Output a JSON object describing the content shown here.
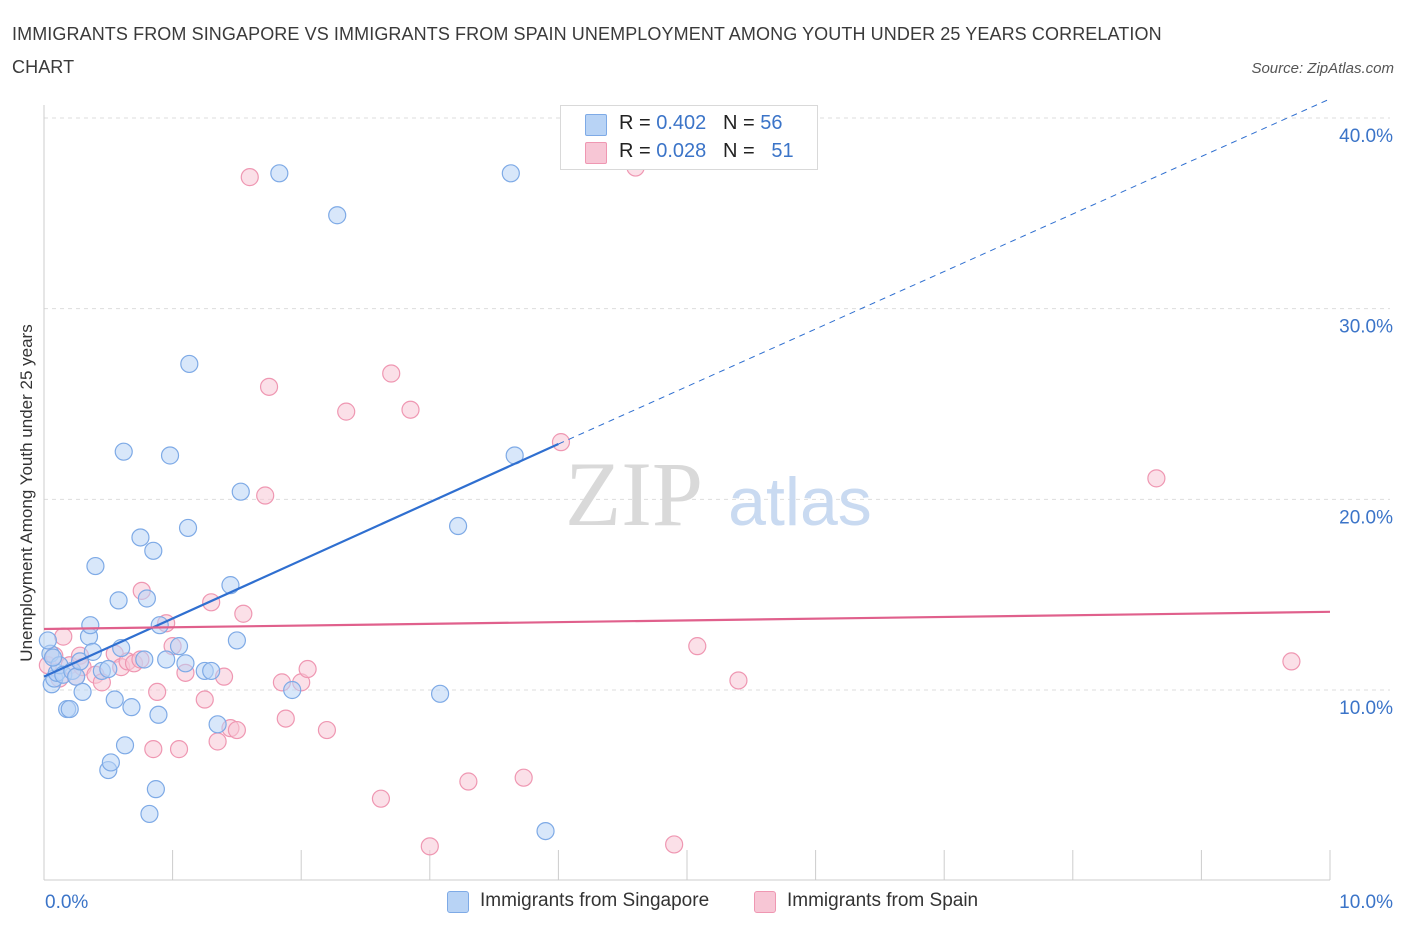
{
  "title": "IMMIGRANTS FROM SINGAPORE VS IMMIGRANTS FROM SPAIN UNEMPLOYMENT AMONG YOUTH UNDER 25 YEARS CORRELATION CHART",
  "source": "Source: ZipAtlas.com",
  "watermark": {
    "zip": "ZIP",
    "atlas": "atlas"
  },
  "legend": {
    "singapore": {
      "r_label": "R = ",
      "r_value": "0.402",
      "n_label": "N = ",
      "n_value": "56"
    },
    "spain": {
      "r_label": "R = ",
      "r_value": "0.028",
      "n_label": "N = ",
      "n_value": "51"
    }
  },
  "colors": {
    "singapore_fill": "#b8d3f5",
    "singapore_stroke": "#7eaae6",
    "singapore_line": "#2f6fd0",
    "spain_fill": "#f7c6d5",
    "spain_stroke": "#ef97b2",
    "spain_line": "#e0608c",
    "axis_text": "#3b74c8",
    "grid": "#dddddd"
  },
  "chart_data": {
    "type": "scatter",
    "title": "IMMIGRANTS FROM SINGAPORE VS IMMIGRANTS FROM SPAIN UNEMPLOYMENT AMONG YOUTH UNDER 25 YEARS CORRELATION CHART",
    "xlabel": "",
    "ylabel": "Unemployment Among Youth under 25 years",
    "xlim": [
      0,
      10
    ],
    "ylim": [
      0,
      40
    ],
    "x_tick_labels": [
      "0.0%",
      "10.0%"
    ],
    "y_ticks": [
      10,
      20,
      30,
      40
    ],
    "y_tick_labels": [
      "10.0%",
      "20.0%",
      "30.0%",
      "40.0%"
    ],
    "grid": true,
    "legend_position": "top-center",
    "series": [
      {
        "name": "Immigrants from Singapore",
        "r": 0.402,
        "n": 56,
        "trend": {
          "x_start": 0,
          "y_start": 10.7,
          "x_solid_end": 4.0,
          "y_solid_end": 22.9,
          "x_dash_end": 10,
          "y_dash_end": 41.0
        },
        "points": [
          [
            0.05,
            11.9
          ],
          [
            0.06,
            10.3
          ],
          [
            0.08,
            10.6
          ],
          [
            0.1,
            10.9
          ],
          [
            0.12,
            11.3
          ],
          [
            0.15,
            10.8
          ],
          [
            0.18,
            9.0
          ],
          [
            0.2,
            9.0
          ],
          [
            0.22,
            11.0
          ],
          [
            0.25,
            10.7
          ],
          [
            0.28,
            11.5
          ],
          [
            0.3,
            9.9
          ],
          [
            0.35,
            12.8
          ],
          [
            0.36,
            13.4
          ],
          [
            0.38,
            12.0
          ],
          [
            0.4,
            16.5
          ],
          [
            0.45,
            11.0
          ],
          [
            0.5,
            5.8
          ],
          [
            0.5,
            11.1
          ],
          [
            0.52,
            6.2
          ],
          [
            0.55,
            9.5
          ],
          [
            0.58,
            14.7
          ],
          [
            0.6,
            12.2
          ],
          [
            0.62,
            22.5
          ],
          [
            0.63,
            7.1
          ],
          [
            0.68,
            9.1
          ],
          [
            0.75,
            18.0
          ],
          [
            0.78,
            11.6
          ],
          [
            0.8,
            14.8
          ],
          [
            0.82,
            3.5
          ],
          [
            0.85,
            17.3
          ],
          [
            0.87,
            4.8
          ],
          [
            0.89,
            8.7
          ],
          [
            0.9,
            13.4
          ],
          [
            0.95,
            11.6
          ],
          [
            0.98,
            22.3
          ],
          [
            1.05,
            12.3
          ],
          [
            1.1,
            11.4
          ],
          [
            1.12,
            18.5
          ],
          [
            1.13,
            27.1
          ],
          [
            1.25,
            11.0
          ],
          [
            1.3,
            11.0
          ],
          [
            1.35,
            8.2
          ],
          [
            1.45,
            15.5
          ],
          [
            1.5,
            12.6
          ],
          [
            1.53,
            20.4
          ],
          [
            1.83,
            37.1
          ],
          [
            1.93,
            10.0
          ],
          [
            2.28,
            34.9
          ],
          [
            3.08,
            9.8
          ],
          [
            3.22,
            18.6
          ],
          [
            3.63,
            37.1
          ],
          [
            3.66,
            22.3
          ],
          [
            3.9,
            2.6
          ],
          [
            0.03,
            12.6
          ],
          [
            0.07,
            11.7
          ]
        ]
      },
      {
        "name": "Immigrants from Spain",
        "r": 0.028,
        "n": 51,
        "trend": {
          "x_start": 0,
          "y_start": 13.2,
          "x_end": 10,
          "y_end": 14.1
        },
        "points": [
          [
            0.03,
            11.3
          ],
          [
            0.08,
            11.8
          ],
          [
            0.12,
            10.6
          ],
          [
            0.15,
            12.8
          ],
          [
            0.2,
            11.3
          ],
          [
            0.25,
            10.7
          ],
          [
            0.28,
            11.8
          ],
          [
            0.3,
            11.2
          ],
          [
            0.4,
            10.8
          ],
          [
            0.45,
            10.4
          ],
          [
            0.55,
            11.9
          ],
          [
            0.6,
            11.2
          ],
          [
            0.65,
            11.5
          ],
          [
            0.7,
            11.4
          ],
          [
            0.75,
            11.6
          ],
          [
            0.76,
            15.2
          ],
          [
            0.85,
            6.9
          ],
          [
            0.88,
            9.9
          ],
          [
            0.95,
            13.5
          ],
          [
            1.0,
            12.3
          ],
          [
            1.05,
            6.9
          ],
          [
            1.1,
            10.9
          ],
          [
            1.25,
            9.5
          ],
          [
            1.3,
            14.6
          ],
          [
            1.35,
            7.3
          ],
          [
            1.4,
            10.7
          ],
          [
            1.45,
            8.0
          ],
          [
            1.5,
            7.9
          ],
          [
            1.55,
            14.0
          ],
          [
            1.6,
            36.9
          ],
          [
            1.72,
            20.2
          ],
          [
            1.75,
            25.9
          ],
          [
            1.85,
            10.4
          ],
          [
            1.88,
            8.5
          ],
          [
            2.0,
            10.4
          ],
          [
            2.05,
            11.1
          ],
          [
            2.2,
            7.9
          ],
          [
            2.35,
            24.6
          ],
          [
            2.62,
            4.3
          ],
          [
            2.7,
            26.6
          ],
          [
            2.85,
            24.7
          ],
          [
            3.0,
            1.8
          ],
          [
            3.3,
            5.2
          ],
          [
            3.73,
            5.4
          ],
          [
            4.02,
            23.0
          ],
          [
            4.6,
            37.4
          ],
          [
            4.9,
            1.9
          ],
          [
            5.08,
            12.3
          ],
          [
            5.4,
            10.5
          ],
          [
            8.65,
            21.1
          ],
          [
            9.7,
            11.5
          ]
        ]
      }
    ]
  }
}
